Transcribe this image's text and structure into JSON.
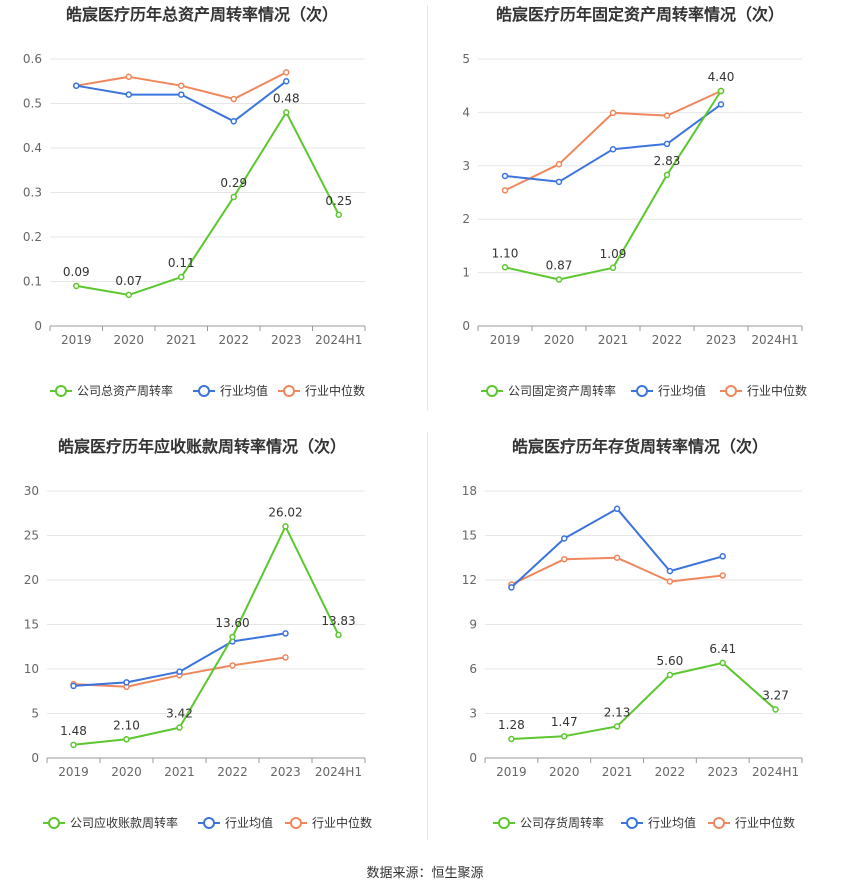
{
  "source": "数据来源：恒生聚源",
  "colors": {
    "company": "#5cc72e",
    "avg": "#3a74dc",
    "median": "#f0875c",
    "grid": "#e6e6e6",
    "axis": "#999999"
  },
  "chart_data": [
    {
      "type": "line",
      "title": "皓宸医疗历年总资产周转率情况（次）",
      "categories": [
        "2019",
        "2020",
        "2021",
        "2022",
        "2023",
        "2024H1"
      ],
      "ylim": [
        0,
        0.6
      ],
      "yticks": [
        "0",
        "0.1",
        "0.2",
        "0.3",
        "0.4",
        "0.5",
        "0.6"
      ],
      "series": [
        {
          "name": "公司总资产周转率",
          "values": [
            0.09,
            0.07,
            0.11,
            0.29,
            0.48,
            0.25
          ],
          "labels": [
            "0.09",
            "0.07",
            "0.11",
            "0.29",
            "0.48",
            "0.25"
          ]
        },
        {
          "name": "行业均值",
          "values": [
            0.54,
            0.52,
            0.52,
            0.46,
            0.55,
            null
          ]
        },
        {
          "name": "行业中位数",
          "values": [
            0.54,
            0.56,
            0.54,
            0.51,
            0.57,
            null
          ]
        }
      ]
    },
    {
      "type": "line",
      "title": "皓宸医疗历年固定资产周转率情况（次）",
      "categories": [
        "2019",
        "2020",
        "2021",
        "2022",
        "2023",
        "2024H1"
      ],
      "ylim": [
        0,
        5
      ],
      "yticks": [
        "0",
        "1",
        "2",
        "3",
        "4",
        "5"
      ],
      "series": [
        {
          "name": "公司固定资产周转率",
          "values": [
            1.1,
            0.87,
            1.09,
            2.83,
            4.4,
            null
          ],
          "labels": [
            "1.10",
            "0.87",
            "1.09",
            "2.83",
            "4.40",
            ""
          ]
        },
        {
          "name": "行业均值",
          "values": [
            2.81,
            2.7,
            3.31,
            3.41,
            4.15,
            null
          ]
        },
        {
          "name": "行业中位数",
          "values": [
            2.54,
            3.03,
            3.99,
            3.94,
            4.4,
            null
          ]
        }
      ]
    },
    {
      "type": "line",
      "title": "皓宸医疗历年应收账款周转率情况（次）",
      "categories": [
        "2019",
        "2020",
        "2021",
        "2022",
        "2023",
        "2024H1"
      ],
      "ylim": [
        0,
        30
      ],
      "yticks": [
        "0",
        "5",
        "10",
        "15",
        "20",
        "25",
        "30"
      ],
      "series": [
        {
          "name": "公司应收账款周转率",
          "values": [
            1.48,
            2.1,
            3.42,
            13.6,
            26.02,
            13.83
          ],
          "labels": [
            "1.48",
            "2.10",
            "3.42",
            "13.60",
            "26.02",
            "13.83"
          ]
        },
        {
          "name": "行业均值",
          "values": [
            8.1,
            8.5,
            9.7,
            13.1,
            14.0,
            null
          ]
        },
        {
          "name": "行业中位数",
          "values": [
            8.3,
            8.0,
            9.3,
            10.4,
            11.3,
            null
          ]
        }
      ]
    },
    {
      "type": "line",
      "title": "皓宸医疗历年存货周转率情况（次）",
      "categories": [
        "2019",
        "2020",
        "2021",
        "2022",
        "2023",
        "2024H1"
      ],
      "ylim": [
        0,
        18
      ],
      "yticks": [
        "0",
        "3",
        "6",
        "9",
        "12",
        "15",
        "18"
      ],
      "series": [
        {
          "name": "公司存货周转率",
          "values": [
            1.28,
            1.47,
            2.13,
            5.6,
            6.41,
            3.27
          ],
          "labels": [
            "1.28",
            "1.47",
            "2.13",
            "5.60",
            "6.41",
            "3.27"
          ]
        },
        {
          "name": "行业均值",
          "values": [
            11.5,
            14.8,
            16.8,
            12.6,
            13.6,
            null
          ]
        },
        {
          "name": "行业中位数",
          "values": [
            11.7,
            13.4,
            13.5,
            11.9,
            12.3,
            null
          ]
        }
      ]
    }
  ]
}
